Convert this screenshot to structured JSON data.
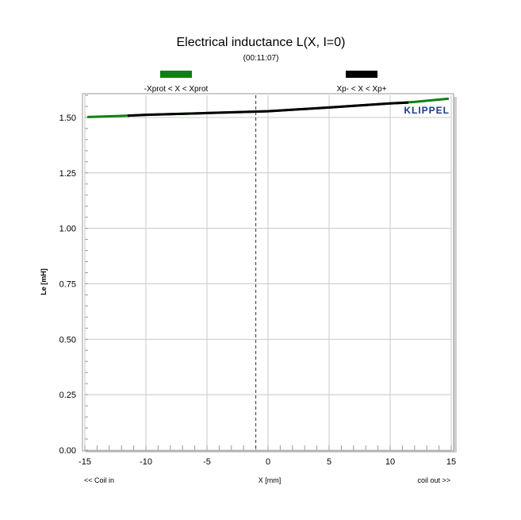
{
  "chart_data": {
    "type": "line",
    "title": "Electrical inductance L(X, I=0)",
    "subtitle": "(00:11:07)",
    "xlabel": "X [mm]",
    "ylabel": "Le [mH]",
    "x_left_note": "<< Coil in",
    "x_right_note": "coil out >>",
    "brand": "KLIPPEL",
    "xlim": [
      -15,
      15
    ],
    "ylim": [
      0,
      1.6
    ],
    "xticks": [
      -15,
      -10,
      -5,
      0,
      5,
      10,
      15
    ],
    "xtick_labels": [
      "-15",
      "-10",
      "-5",
      "0",
      "5",
      "10",
      "15"
    ],
    "yticks": [
      0,
      0.25,
      0.5,
      0.75,
      1.0,
      1.25,
      1.5
    ],
    "ytick_labels": [
      "0.00",
      "0.25",
      "0.50",
      "0.75",
      "1.00",
      "1.25",
      "1.50"
    ],
    "grid": true,
    "legend_placement": "top",
    "reference_line_x": -1,
    "series": [
      {
        "name": "-Xprot < X < Xprot",
        "color": "#118011",
        "x": [
          -14.8,
          -12,
          -10,
          -5,
          0,
          5,
          10,
          12,
          14.8
        ],
        "y": [
          1.502,
          1.507,
          1.512,
          1.52,
          1.528,
          1.545,
          1.563,
          1.57,
          1.585
        ]
      },
      {
        "name": "Xp- < X < Xp+",
        "color": "#000000",
        "x": [
          -11.5,
          -10,
          -5,
          0,
          5,
          10,
          11.5
        ],
        "y": [
          1.508,
          1.512,
          1.52,
          1.528,
          1.545,
          1.563,
          1.567
        ]
      }
    ]
  }
}
